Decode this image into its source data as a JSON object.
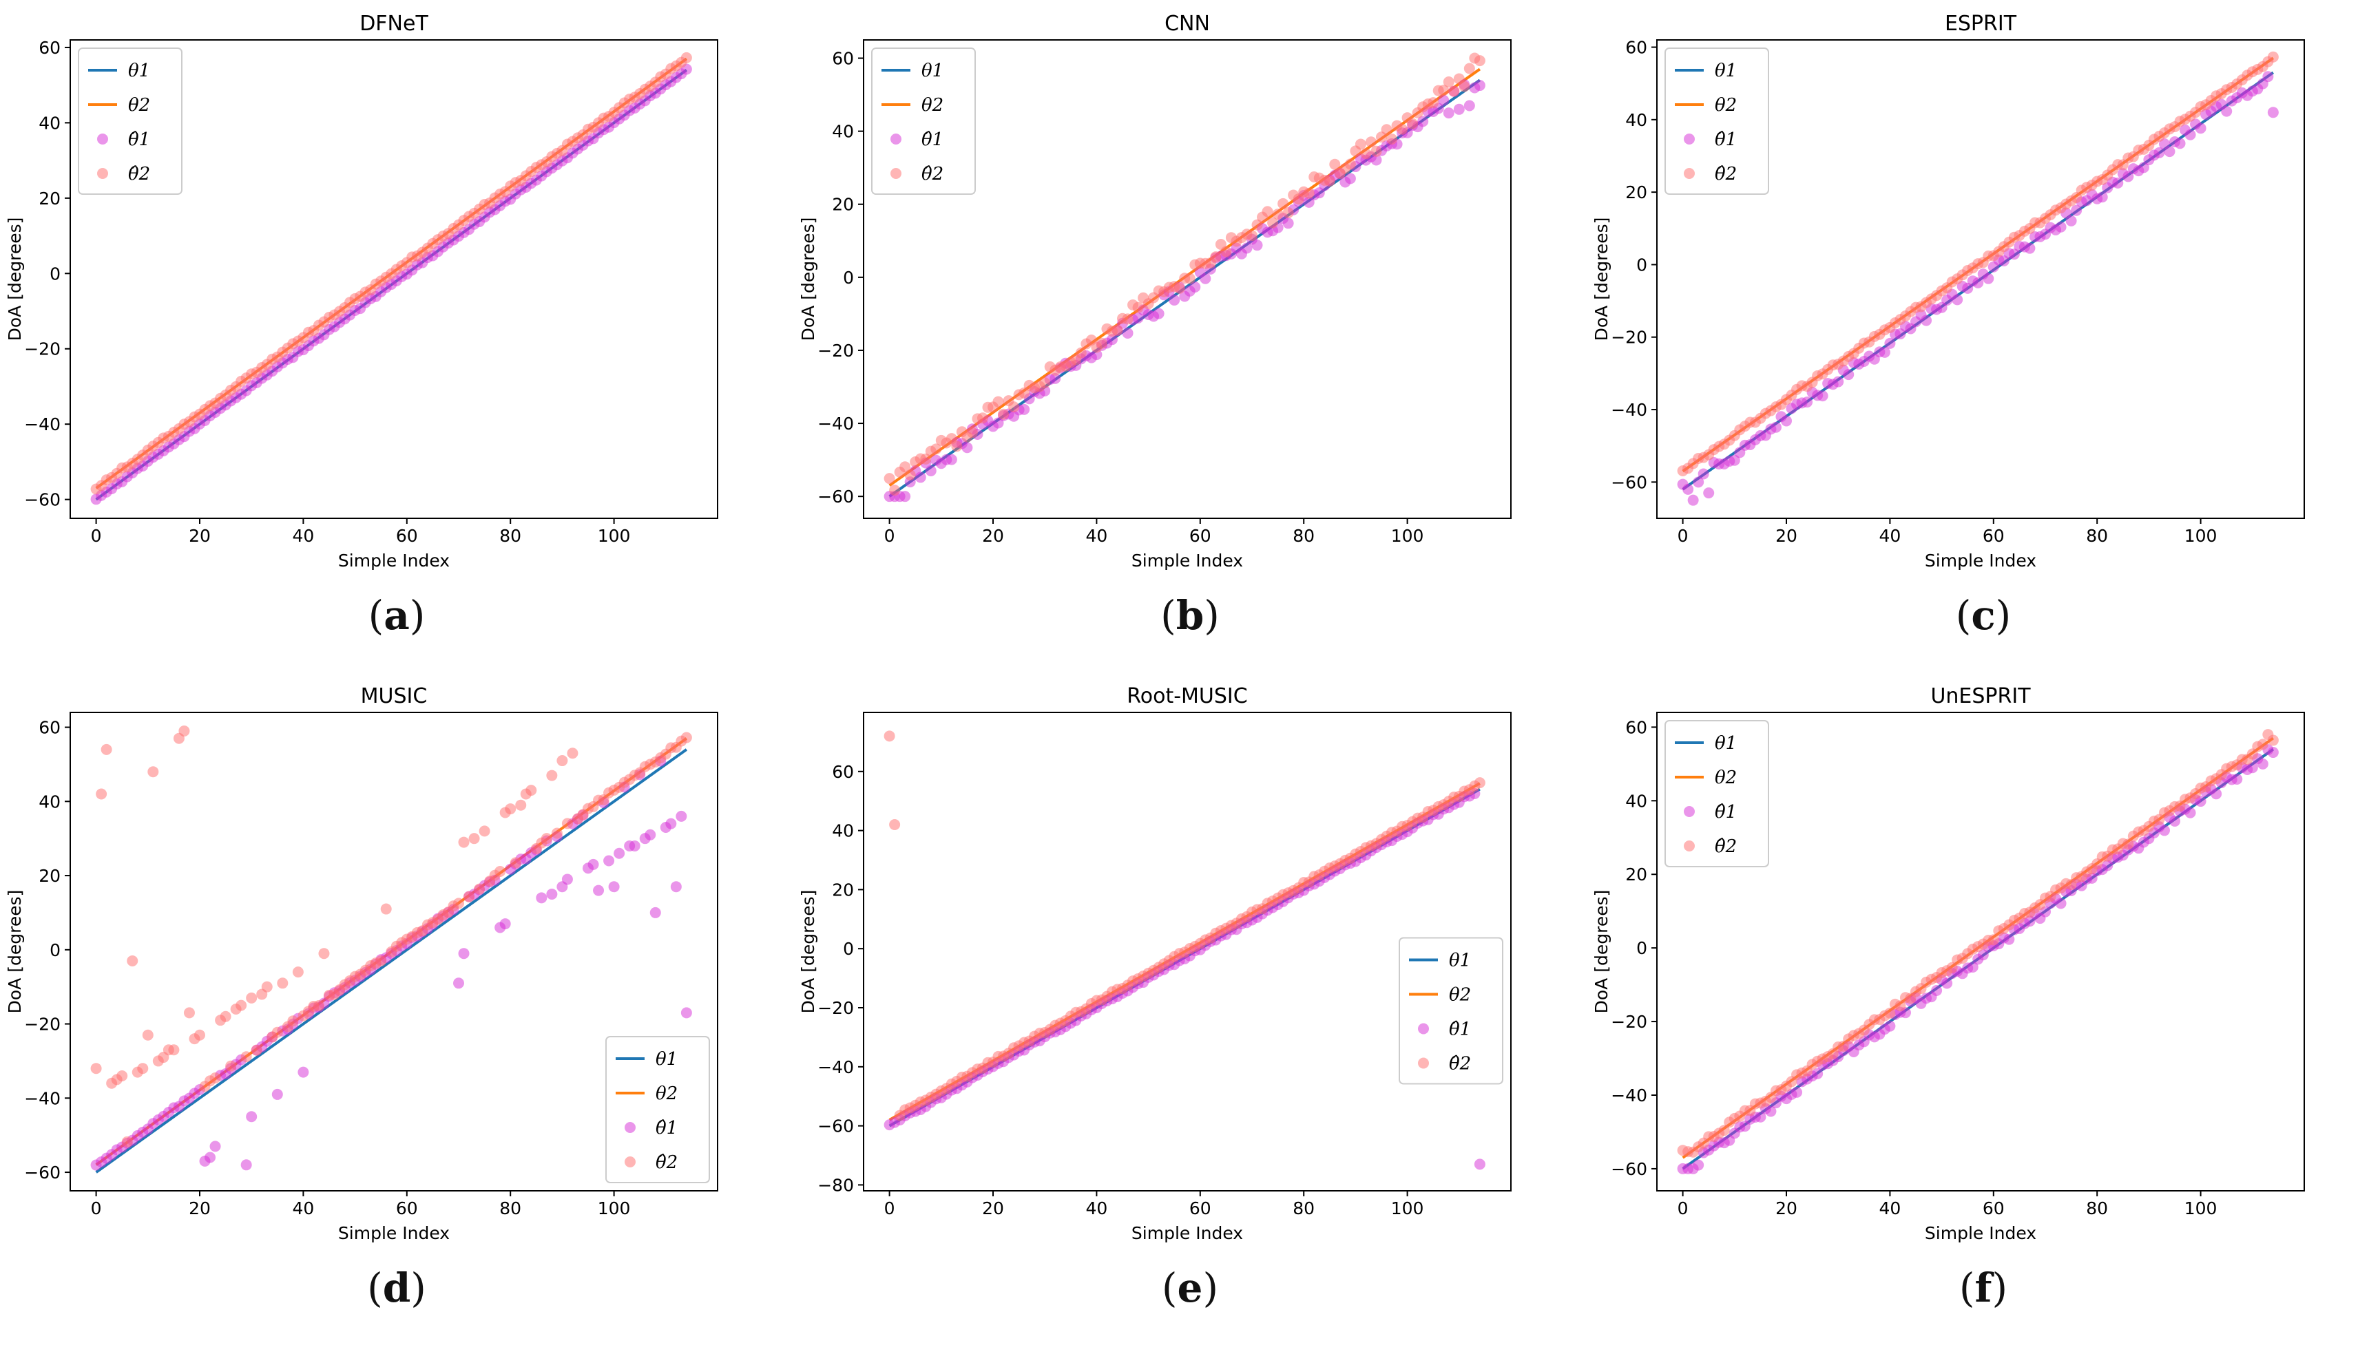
{
  "colors": {
    "theta1": "#1f77b4",
    "theta2": "#ff7f0e",
    "est1": "#d62bd6",
    "est2": "#ff6b6b"
  },
  "legend": [
    "θ1",
    "θ2",
    "θ̂1",
    "θ̂2"
  ],
  "chart_data": [
    {
      "id": "a",
      "label_paren_open": "(",
      "label_letter": "a",
      "label_paren_close": ")",
      "type": "line+scatter",
      "title": "DFNeT",
      "xlabel": "Simple Index",
      "ylabel": "DoA [degrees]",
      "xlim": [
        -5,
        120
      ],
      "ylim": [
        -65,
        62
      ],
      "xticks": [
        0,
        20,
        40,
        60,
        80,
        100
      ],
      "yticks": [
        -60,
        -40,
        -20,
        0,
        20,
        40,
        60
      ],
      "legend_position": "top-left",
      "n": 115,
      "series": [
        {
          "name": "θ1",
          "kind": "line",
          "start": -60,
          "end": 54
        },
        {
          "name": "θ2",
          "kind": "line",
          "start": -57,
          "end": 57
        },
        {
          "name": "θ̂1",
          "kind": "scatter",
          "start": -60,
          "end": 54,
          "noise": 0.3,
          "outliers": []
        },
        {
          "name": "θ̂2",
          "kind": "scatter",
          "start": -57,
          "end": 57,
          "noise": 0.4,
          "outliers": []
        }
      ]
    },
    {
      "id": "b",
      "label_paren_open": "(",
      "label_letter": "b",
      "label_paren_close": ")",
      "type": "line+scatter",
      "title": "CNN",
      "xlabel": "Simple Index",
      "ylabel": "DoA [degrees]",
      "xlim": [
        -5,
        120
      ],
      "ylim": [
        -66,
        65
      ],
      "xticks": [
        0,
        20,
        40,
        60,
        80,
        100
      ],
      "yticks": [
        -60,
        -40,
        -20,
        0,
        20,
        40,
        60
      ],
      "legend_position": "top-left",
      "n": 115,
      "series": [
        {
          "name": "θ1",
          "kind": "line",
          "start": -60,
          "end": 54
        },
        {
          "name": "θ2",
          "kind": "line",
          "start": -57,
          "end": 57
        },
        {
          "name": "θ̂1",
          "kind": "scatter",
          "start": -60,
          "end": 54,
          "noise": 2.5,
          "outliers": [
            [
              0,
              -60
            ],
            [
              1,
              -60
            ],
            [
              2,
              -60
            ],
            [
              3,
              -60
            ],
            [
              108,
              45
            ],
            [
              110,
              46
            ],
            [
              112,
              47
            ]
          ]
        },
        {
          "name": "θ̂2",
          "kind": "scatter",
          "start": -57,
          "end": 57,
          "noise": 2.5,
          "outliers": [
            [
              113,
              60
            ]
          ]
        }
      ]
    },
    {
      "id": "c",
      "label_paren_open": "(",
      "label_letter": "c",
      "label_paren_close": ")",
      "type": "line+scatter",
      "title": "ESPRIT",
      "xlabel": "Simple Index",
      "ylabel": "DoA [degrees]",
      "xlim": [
        -5,
        120
      ],
      "ylim": [
        -70,
        62
      ],
      "xticks": [
        0,
        20,
        40,
        60,
        80,
        100
      ],
      "yticks": [
        -60,
        -40,
        -20,
        0,
        20,
        40,
        60
      ],
      "legend_position": "top-left",
      "n": 115,
      "series": [
        {
          "name": "θ1",
          "kind": "line",
          "start": -62,
          "end": 53
        },
        {
          "name": "θ2",
          "kind": "line",
          "start": -57,
          "end": 57
        },
        {
          "name": "θ̂1",
          "kind": "scatter",
          "start": -62,
          "end": 53,
          "noise": 1.8,
          "outliers": [
            [
              1,
              -62
            ],
            [
              2,
              -65
            ],
            [
              3,
              -60
            ],
            [
              5,
              -63
            ],
            [
              8,
              -55
            ],
            [
              10,
              -54
            ],
            [
              114,
              42
            ]
          ]
        },
        {
          "name": "θ̂2",
          "kind": "scatter",
          "start": -57,
          "end": 57,
          "noise": 0.6,
          "outliers": []
        }
      ]
    },
    {
      "id": "d",
      "label_paren_open": "(",
      "label_letter": "d",
      "label_paren_close": ")",
      "type": "line+scatter",
      "title": "MUSIC",
      "xlabel": "Simple Index",
      "ylabel": "DoA [degrees]",
      "xlim": [
        -5,
        120
      ],
      "ylim": [
        -65,
        64
      ],
      "xticks": [
        0,
        20,
        40,
        60,
        80,
        100
      ],
      "yticks": [
        -60,
        -40,
        -20,
        0,
        20,
        40,
        60
      ],
      "legend_position": "bottom-right",
      "n": 115,
      "series": [
        {
          "name": "θ1",
          "kind": "line",
          "start": -60,
          "end": 54
        },
        {
          "name": "θ2",
          "kind": "line",
          "start": -58,
          "end": 57
        },
        {
          "name": "θ̂1",
          "kind": "scatter",
          "start": -58,
          "end": 56,
          "noise": 0.5,
          "outliers": [
            [
              21,
              -57
            ],
            [
              22,
              -56
            ],
            [
              23,
              -53
            ],
            [
              29,
              -58
            ],
            [
              30,
              -45
            ],
            [
              35,
              -39
            ],
            [
              40,
              -33
            ],
            [
              70,
              -9
            ],
            [
              71,
              -1
            ],
            [
              78,
              6
            ],
            [
              79,
              7
            ],
            [
              86,
              14
            ],
            [
              88,
              15
            ],
            [
              90,
              17
            ],
            [
              91,
              19
            ],
            [
              95,
              22
            ],
            [
              96,
              23
            ],
            [
              97,
              16
            ],
            [
              99,
              24
            ],
            [
              100,
              17
            ],
            [
              101,
              26
            ],
            [
              103,
              28
            ],
            [
              104,
              28
            ],
            [
              106,
              30
            ],
            [
              107,
              31
            ],
            [
              108,
              10
            ],
            [
              110,
              33
            ],
            [
              111,
              34
            ],
            [
              112,
              17
            ],
            [
              113,
              36
            ],
            [
              114,
              -17
            ]
          ]
        },
        {
          "name": "θ̂2",
          "kind": "scatter",
          "start": -58,
          "end": 57,
          "noise": 0.5,
          "outliers": [
            [
              0,
              -32
            ],
            [
              1,
              42
            ],
            [
              2,
              54
            ],
            [
              3,
              -36
            ],
            [
              4,
              -35
            ],
            [
              5,
              -34
            ],
            [
              7,
              -3
            ],
            [
              8,
              -33
            ],
            [
              9,
              -32
            ],
            [
              10,
              -23
            ],
            [
              11,
              48
            ],
            [
              12,
              -30
            ],
            [
              13,
              -29
            ],
            [
              14,
              -27
            ],
            [
              15,
              -27
            ],
            [
              16,
              57
            ],
            [
              17,
              59
            ],
            [
              18,
              -17
            ],
            [
              19,
              -24
            ],
            [
              20,
              -23
            ],
            [
              24,
              -19
            ],
            [
              25,
              -18
            ],
            [
              27,
              -16
            ],
            [
              28,
              -15
            ],
            [
              30,
              -13
            ],
            [
              32,
              -12
            ],
            [
              33,
              -10
            ],
            [
              36,
              -9
            ],
            [
              39,
              -6
            ],
            [
              44,
              -1
            ],
            [
              56,
              11
            ],
            [
              71,
              29
            ],
            [
              73,
              30
            ],
            [
              75,
              32
            ],
            [
              79,
              37
            ],
            [
              80,
              38
            ],
            [
              82,
              39
            ],
            [
              83,
              42
            ],
            [
              84,
              43
            ],
            [
              88,
              47
            ],
            [
              90,
              51
            ],
            [
              92,
              53
            ]
          ]
        }
      ]
    },
    {
      "id": "e",
      "label_paren_open": "(",
      "label_letter": "e",
      "label_paren_close": ")",
      "type": "line+scatter",
      "title": "Root-MUSIC",
      "xlabel": "Simple Index",
      "ylabel": "DoA [degrees]",
      "xlim": [
        -5,
        120
      ],
      "ylim": [
        -82,
        80
      ],
      "xticks": [
        0,
        20,
        40,
        60,
        80,
        100
      ],
      "yticks": [
        -80,
        -60,
        -40,
        -20,
        0,
        20,
        40,
        60
      ],
      "legend_position": "center-right",
      "n": 115,
      "series": [
        {
          "name": "θ1",
          "kind": "line",
          "start": -60,
          "end": 54
        },
        {
          "name": "θ2",
          "kind": "line",
          "start": -58,
          "end": 56
        },
        {
          "name": "θ̂1",
          "kind": "scatter",
          "start": -60,
          "end": 54,
          "noise": 0.5,
          "outliers": [
            [
              114,
              -73
            ]
          ]
        },
        {
          "name": "θ̂2",
          "kind": "scatter",
          "start": -58,
          "end": 56,
          "noise": 0.5,
          "outliers": [
            [
              0,
              72
            ],
            [
              1,
              42
            ]
          ]
        }
      ]
    },
    {
      "id": "f",
      "label_paren_open": "(",
      "label_letter": "f",
      "label_paren_close": ")",
      "type": "line+scatter",
      "title": "UnESPRIT",
      "xlabel": "Simple Index",
      "ylabel": "DoA [degrees]",
      "xlim": [
        -5,
        120
      ],
      "ylim": [
        -66,
        64
      ],
      "xticks": [
        0,
        20,
        40,
        60,
        80,
        100
      ],
      "yticks": [
        -60,
        -40,
        -20,
        0,
        20,
        40,
        60
      ],
      "legend_position": "top-left",
      "n": 115,
      "series": [
        {
          "name": "θ1",
          "kind": "line",
          "start": -60,
          "end": 54
        },
        {
          "name": "θ2",
          "kind": "line",
          "start": -57,
          "end": 57
        },
        {
          "name": "θ̂1",
          "kind": "scatter",
          "start": -60,
          "end": 54,
          "noise": 1.5,
          "outliers": [
            [
              0,
              -60
            ],
            [
              1,
              -60
            ],
            [
              2,
              -60
            ],
            [
              3,
              -59
            ],
            [
              110,
              49
            ],
            [
              112,
              50
            ]
          ]
        },
        {
          "name": "θ̂2",
          "kind": "scatter",
          "start": -57,
          "end": 57,
          "noise": 0.8,
          "outliers": [
            [
              0,
              -55
            ],
            [
              113,
              58
            ]
          ]
        }
      ]
    }
  ]
}
